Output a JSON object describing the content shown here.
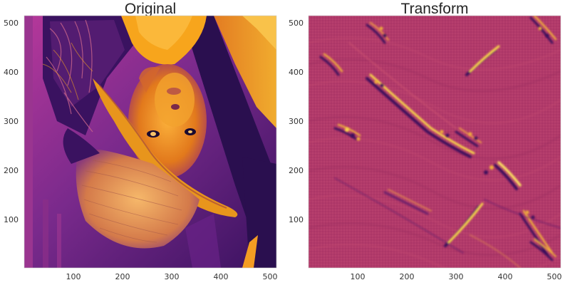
{
  "panels": [
    {
      "title": "Original",
      "colormap": "inferno",
      "x_ticks": [
        "100",
        "200",
        "300",
        "400",
        "500"
      ],
      "y_ticks": [
        "500",
        "400",
        "300",
        "200",
        "100"
      ]
    },
    {
      "title": "Transform",
      "colormap": "inferno",
      "x_ticks": [
        "100",
        "200",
        "300",
        "400",
        "500"
      ],
      "y_ticks": [
        "500",
        "400",
        "300",
        "200",
        "100"
      ]
    }
  ],
  "colors": {
    "original_background": "#7a2a8c",
    "original_dark": "#2a0f4f",
    "original_bright": "#f7a51c",
    "transform_background": "#b13a6a",
    "transform_bright": "#f9d84a",
    "transform_dark": "#3d0f5c"
  }
}
